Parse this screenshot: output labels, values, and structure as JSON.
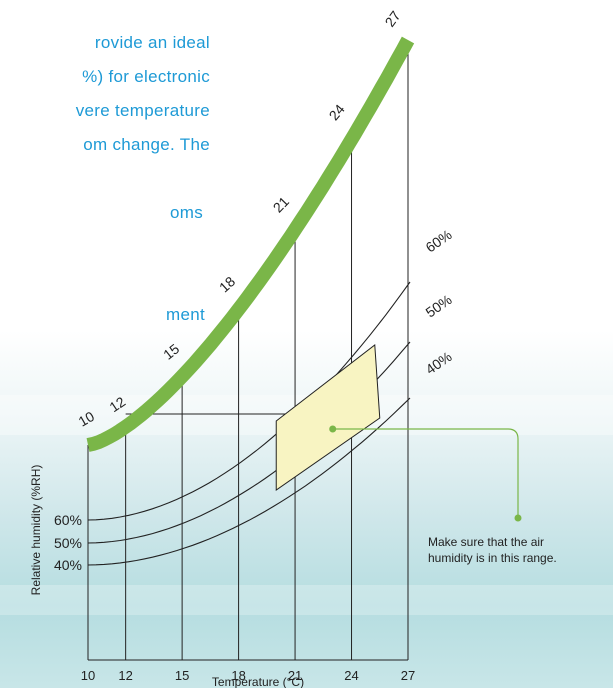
{
  "page_text": {
    "lines": [
      "rovide an ideal",
      "%) for electronic",
      "vere temperature",
      "om change. The",
      "",
      "oms",
      "",
      "",
      "ment"
    ]
  },
  "colors": {
    "text_blue": "#1e9ad6",
    "curve_green": "#7ab648",
    "range_fill": "#f8f4c2",
    "marker_green": "#7ab648"
  },
  "chart_data": {
    "type": "line",
    "xlabel": "Temperature (°C)",
    "ylabel": "Relative humidity (%RH)",
    "xlim": [
      10,
      27
    ],
    "x_ticks": [
      10,
      12,
      15,
      18,
      21,
      24,
      27
    ],
    "y_ticks": [
      "60%",
      "50%",
      "40%"
    ],
    "saturation_curve": {
      "labels": [
        "10",
        "12",
        "15",
        "18",
        "21",
        "24",
        "27"
      ],
      "x": [
        10,
        12,
        15,
        18,
        21,
        24,
        27
      ]
    },
    "series": [
      {
        "name": "60%",
        "x": [
          10,
          27
        ],
        "y_start": 60
      },
      {
        "name": "50%",
        "x": [
          10,
          27
        ],
        "y_start": 50
      },
      {
        "name": "40%",
        "x": [
          10,
          27
        ],
        "y_start": 40
      }
    ],
    "recommended_range": {
      "temperature": [
        20,
        25.5
      ],
      "humidity": [
        40,
        60
      ]
    },
    "annotation": {
      "text_line1": "Make sure that the air",
      "text_line2": "humidity is in this range.",
      "point": [
        23,
        50
      ]
    }
  }
}
